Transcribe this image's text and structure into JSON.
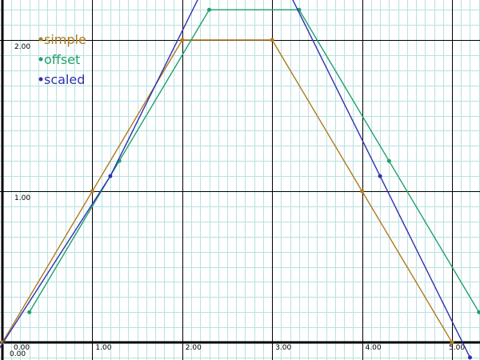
{
  "chart_data": {
    "type": "line",
    "xlim": [
      0,
      5.3
    ],
    "ylim": [
      -0.1,
      2.25
    ],
    "grid": true,
    "legend_position": "top-left",
    "x_ticks": [
      {
        "value": 0,
        "label": "0.00"
      },
      {
        "value": 1,
        "label": "1.00"
      },
      {
        "value": 2,
        "label": "2.00"
      },
      {
        "value": 3,
        "label": "3.00"
      },
      {
        "value": 4,
        "label": "4.00"
      },
      {
        "value": 5,
        "label": "5.00"
      }
    ],
    "y_ticks": [
      {
        "value": 0,
        "label": "0.00"
      },
      {
        "value": 1,
        "label": "1.00"
      },
      {
        "value": 2,
        "label": "2.00"
      }
    ],
    "series": [
      {
        "name": "simple",
        "color": "#b07a1e",
        "points": [
          [
            0,
            0
          ],
          [
            1,
            1
          ],
          [
            2,
            2
          ],
          [
            3,
            2
          ],
          [
            4,
            1
          ],
          [
            5,
            0
          ]
        ]
      },
      {
        "name": "offset",
        "color": "#1ea06a",
        "points": [
          [
            0.3,
            0.2
          ],
          [
            1.3,
            1.2
          ],
          [
            2.3,
            2.2
          ],
          [
            3.3,
            2.2
          ],
          [
            4.3,
            1.2
          ],
          [
            5.3,
            0.2
          ]
        ]
      },
      {
        "name": "scaled",
        "color": "#3030b0",
        "points": [
          [
            -0.1,
            -0.1
          ],
          [
            1.2,
            1.1
          ],
          [
            2.2,
            2.3
          ],
          [
            3.2,
            2.3
          ],
          [
            4.2,
            1.1
          ],
          [
            5.2,
            -0.1
          ]
        ]
      }
    ]
  }
}
